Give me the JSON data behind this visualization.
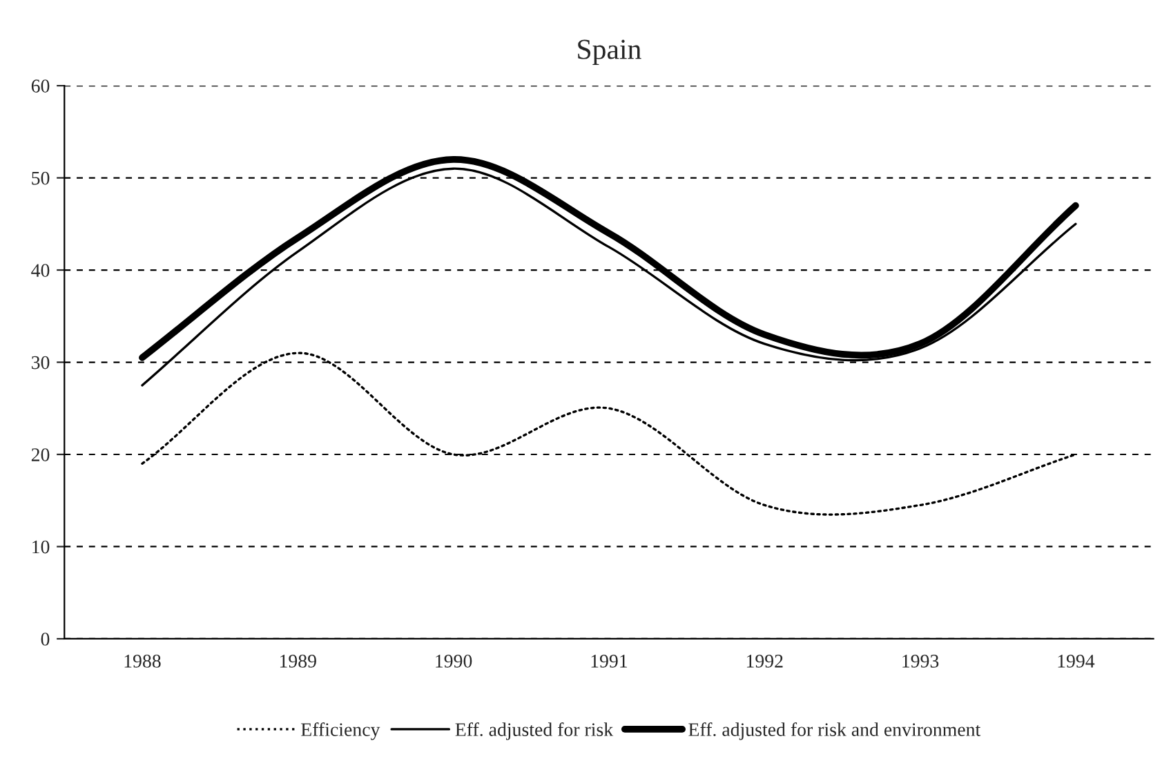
{
  "chart_data": {
    "type": "line",
    "title": "Spain",
    "categories": [
      "1988",
      "1989",
      "1990",
      "1991",
      "1992",
      "1993",
      "1994"
    ],
    "series": [
      {
        "name": "Efficiency",
        "color": "#000000",
        "line_style": "dotted",
        "values": [
          19,
          31,
          20,
          25,
          14.5,
          14.5,
          20
        ]
      },
      {
        "name": "Eff. adjusted for risk",
        "color": "#000000",
        "line_style": "solid",
        "values": [
          27.5,
          42,
          51,
          42.5,
          32,
          31.5,
          45
        ]
      },
      {
        "name": "Eff. adjusted for risk and environment",
        "color": "#000000",
        "line_style": "solid",
        "values": [
          30.5,
          43.5,
          52,
          44,
          33,
          32,
          47
        ]
      }
    ],
    "ylim": [
      0,
      60
    ],
    "yticks": [
      0,
      10,
      20,
      30,
      40,
      50,
      60
    ],
    "grid": "y",
    "legend": "bottom",
    "marker": "none"
  }
}
